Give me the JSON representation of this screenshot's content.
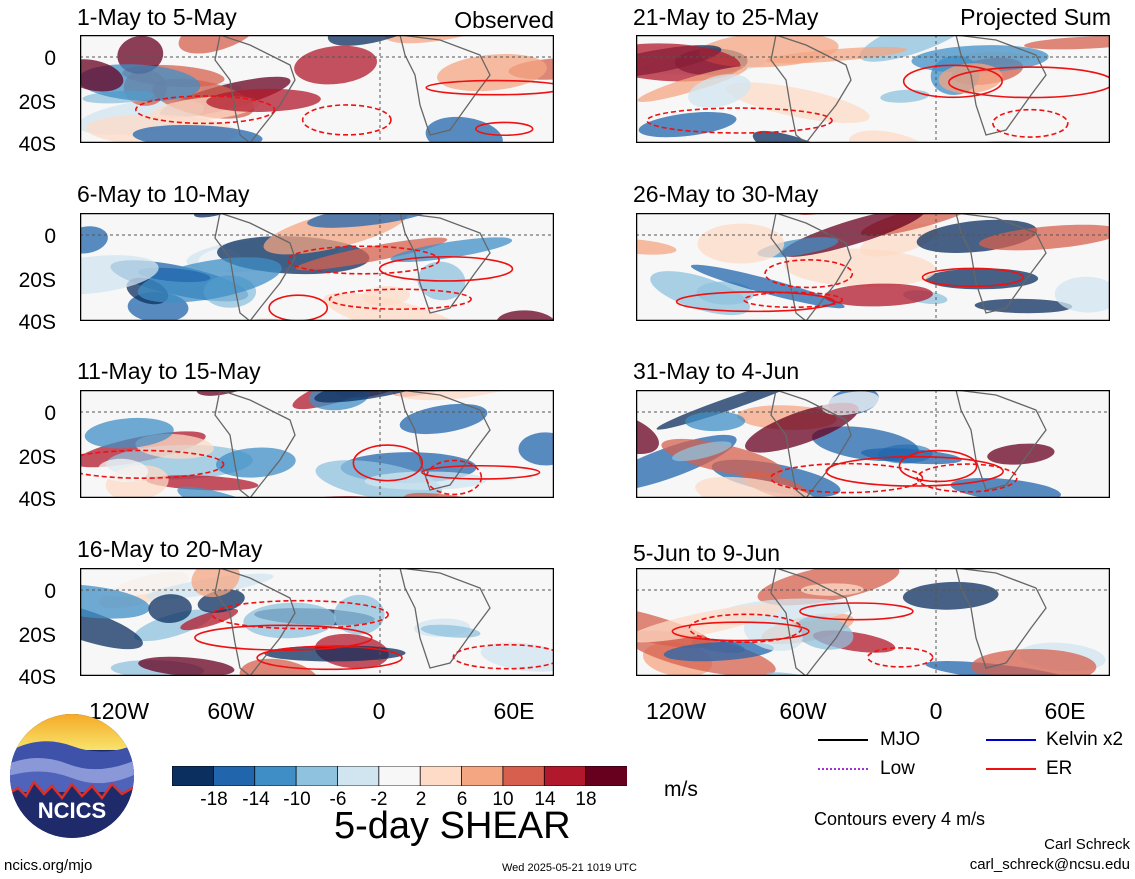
{
  "panels": [
    {
      "title": "1-May to 5-May",
      "tag": "Observed"
    },
    {
      "title": "21-May to 25-May",
      "tag": "Projected Sum"
    },
    {
      "title": "6-May to 10-May",
      "tag": ""
    },
    {
      "title": "26-May to 30-May",
      "tag": ""
    },
    {
      "title": "11-May to 15-May",
      "tag": ""
    },
    {
      "title": "31-May to 4-Jun",
      "tag": ""
    },
    {
      "title": "16-May to 20-May",
      "tag": ""
    },
    {
      "title": "5-Jun to 9-Jun",
      "tag": ""
    }
  ],
  "lat_labels": [
    "0",
    "20S",
    "40S"
  ],
  "lon_labels": [
    "120W",
    "60W",
    "0",
    "60E"
  ],
  "colorbar": {
    "ticks": [
      "-18",
      "-14",
      "-10",
      "-6",
      "-2",
      "2",
      "6",
      "10",
      "14",
      "18"
    ],
    "colors": [
      "#0b2f5f",
      "#2166ac",
      "#3f8fc6",
      "#8fc2de",
      "#d1e5f0",
      "#f7f7f7",
      "#fddbc7",
      "#f4a582",
      "#d6604d",
      "#b2182b",
      "#67001f"
    ],
    "units": "m/s",
    "title": "5-day SHEAR"
  },
  "legend": {
    "items": [
      {
        "label": "MJO",
        "color": "#000000"
      },
      {
        "label": "Kelvin x2",
        "color": "#0000cc"
      },
      {
        "label": "Low",
        "color": "#a030e0"
      },
      {
        "label": "ER",
        "color": "#ee1111"
      }
    ],
    "contour_note": "Contours every 4 m/s"
  },
  "logo_text": "NCICS",
  "footer": {
    "url": "ncics.org/mjo",
    "timestamp": "Wed 2025-05-21 1019 UTC",
    "author": "Carl Schreck",
    "email": "carl_schreck@ncsu.edu"
  }
}
